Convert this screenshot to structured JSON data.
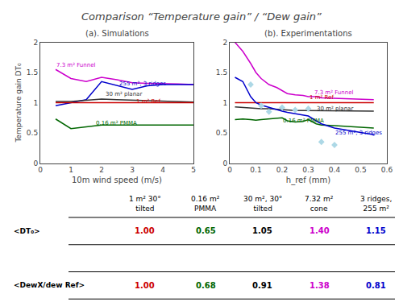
{
  "title": "Comparison “Temperature gain” / “Dew gain”",
  "chart_data": [
    {
      "type": "line",
      "title": "(a). Simulations",
      "xlabel": "10m wind speed (m/s)",
      "ylabel": "Temperature gain DT₀",
      "xlim": [
        0,
        5
      ],
      "ylim": [
        0,
        2
      ],
      "xticks": [
        0,
        1,
        2,
        3,
        4,
        5
      ],
      "yticks": [
        0,
        0.5,
        1,
        1.5,
        2
      ],
      "grid": false,
      "x": [
        0.5,
        1.0,
        1.5,
        2.0,
        2.5,
        3.0,
        3.5,
        4.0,
        4.5,
        5.0
      ],
      "series": [
        {
          "color": "#cc00cc",
          "values": [
            1.55,
            1.4,
            1.35,
            1.42,
            1.38,
            1.33,
            1.32,
            1.32,
            1.31,
            1.3
          ]
        },
        {
          "color": "#0000cc",
          "values": [
            0.95,
            1.0,
            1.05,
            1.35,
            1.28,
            1.22,
            1.28,
            1.3,
            1.3,
            1.3
          ]
        },
        {
          "color": "#333333",
          "values": [
            1.02,
            1.02,
            1.04,
            1.06,
            1.05,
            1.04,
            1.03,
            1.02,
            1.02,
            1.01
          ]
        },
        {
          "color": "#cc0000",
          "values": [
            1.0,
            1.0,
            1.0,
            1.0,
            1.0,
            1.0,
            1.0,
            1.0,
            1.0,
            1.0
          ]
        },
        {
          "color": "#006600",
          "values": [
            0.73,
            0.57,
            0.6,
            0.63,
            0.63,
            0.63,
            0.63,
            0.63,
            0.63,
            0.63
          ]
        }
      ],
      "annotations": [
        {
          "text": "7.3 m² Funnel",
          "x": 0.5,
          "y": 1.55,
          "color": "#cc00cc"
        },
        {
          "text": "255 m², 3 ridges",
          "x": 2.55,
          "y": 1.25,
          "color": "#0000cc"
        },
        {
          "text": "30 m² planar",
          "x": 2.1,
          "y": 1.08,
          "color": "#333333"
        },
        {
          "text": "1 m² Ref",
          "x": 3.1,
          "y": 0.96,
          "color": "#cc0000"
        },
        {
          "text": "0.16 m² PMMA",
          "x": 1.8,
          "y": 0.6,
          "color": "#006600"
        }
      ]
    },
    {
      "type": "line",
      "title": "(b). Experimentations",
      "xlabel": "h_ref (mm)",
      "xlim": [
        0,
        0.6
      ],
      "ylim": [
        0,
        2
      ],
      "xticks": [
        0,
        0.1,
        0.2,
        0.3,
        0.4,
        0.5,
        0.6
      ],
      "yticks": [
        0,
        0.5,
        1,
        1.5,
        2
      ],
      "grid": false,
      "x": [
        0.02,
        0.05,
        0.08,
        0.1,
        0.12,
        0.15,
        0.18,
        0.2,
        0.22,
        0.25,
        0.28,
        0.3,
        0.33,
        0.35,
        0.4,
        0.5,
        0.55
      ],
      "series": [
        {
          "color": "#cc00cc",
          "values": [
            2.0,
            1.85,
            1.65,
            1.5,
            1.4,
            1.3,
            1.25,
            1.2,
            1.15,
            1.13,
            1.12,
            1.1,
            1.1,
            1.08,
            1.07,
            1.06,
            1.05
          ]
        },
        {
          "color": "#cc0000",
          "values": [
            1.0,
            1.0,
            1.0,
            1.0,
            1.0,
            1.0,
            1.0,
            1.0,
            1.0,
            1.0,
            1.0,
            1.0,
            1.0,
            1.0,
            1.0,
            1.0,
            1.0
          ]
        },
        {
          "color": "#333333",
          "values": [
            0.93,
            0.92,
            0.92,
            0.91,
            0.9,
            0.9,
            0.89,
            0.88,
            0.88,
            0.87,
            0.87,
            0.87,
            0.87,
            0.86,
            0.86,
            0.86,
            0.86
          ]
        },
        {
          "color": "#006600",
          "values": [
            0.72,
            0.73,
            0.72,
            0.71,
            0.72,
            0.73,
            0.74,
            0.75,
            0.7,
            0.68,
            0.69,
            0.72,
            0.65,
            0.63,
            0.62,
            0.6,
            0.58
          ]
        },
        {
          "color": "#0000cc",
          "values": [
            1.42,
            1.35,
            1.1,
            1.0,
            0.96,
            0.92,
            0.88,
            0.86,
            0.84,
            0.82,
            0.8,
            0.78,
            0.7,
            0.65,
            0.58,
            0.5,
            0.47
          ]
        },
        {
          "type": "scatter",
          "marker": "diamond",
          "color": "lightblue",
          "x": [
            0.08,
            0.12,
            0.15,
            0.2,
            0.25,
            0.3,
            0.35,
            0.4
          ],
          "values": [
            1.3,
            0.95,
            0.85,
            0.92,
            0.88,
            0.9,
            0.35,
            0.3
          ]
        }
      ],
      "annotations": [
        {
          "text": "7.3 m² Funnel",
          "x": 0.32,
          "y": 1.1,
          "color": "#cc00cc"
        },
        {
          "text": "1 m² Ref",
          "x": 0.3,
          "y": 1.02,
          "color": "#cc0000"
        },
        {
          "text": "30 m² planar",
          "x": 0.33,
          "y": 0.84,
          "color": "#333333"
        },
        {
          "text": "0.16 m² PMMA",
          "x": 0.2,
          "y": 0.64,
          "color": "#006600"
        },
        {
          "text": "255 m², 3 ridges",
          "x": 0.4,
          "y": 0.43,
          "color": "#0000cc"
        }
      ]
    },
    {
      "type": "table",
      "columns": [
        "1 m² 30°\ntilted",
        "0.16 m²\nPMMA",
        "30 m², 30°\ntilted",
        "7.32 m²\ncone",
        "3 ridges,\n255 m²"
      ],
      "rows": [
        {
          "label": "<DT₀>",
          "values": [
            "1.00",
            "0.65",
            "1.05",
            "1.40",
            "1.15"
          ]
        },
        {
          "label": "<DewX/dew Ref>",
          "values": [
            "1.00",
            "0.68",
            "0.91",
            "1.38",
            "0.81"
          ]
        }
      ],
      "colors": [
        "#cc0000",
        "#006600",
        "#000000",
        "#cc00cc",
        "#0000cc"
      ]
    }
  ]
}
